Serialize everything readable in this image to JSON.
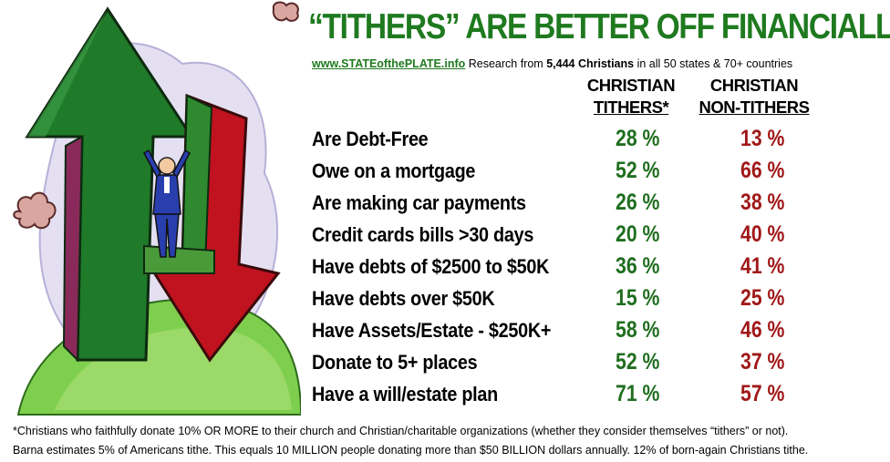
{
  "header": {
    "title": "“TITHERS” ARE BETTER OFF FINANCIALLY",
    "site": "www.STATEofthePLATE.info",
    "research_prefix": " Research from ",
    "research_count": "5,444 Christians",
    "research_suffix": " in all 50  states & 70+ countries"
  },
  "columns": {
    "tithers_line1": "CHRISTIAN",
    "tithers_line2": "TITHERS*",
    "non_tithers_line1": "CHRISTIAN",
    "non_tithers_line2": "NON-TITHERS"
  },
  "rows": [
    {
      "label": "Are Debt-Free",
      "tithers": "28 %",
      "non_tithers": "13 %"
    },
    {
      "label": "Owe on a mortgage",
      "tithers": "52 %",
      "non_tithers": "66 %"
    },
    {
      "label": "Are making car payments",
      "tithers": "26 %",
      "non_tithers": "38 %"
    },
    {
      "label": "Credit cards bills >30 days",
      "tithers": "20 %",
      "non_tithers": "40 %"
    },
    {
      "label": "Have debts of $2500 to $50K",
      "tithers": "36 %",
      "non_tithers": "41 %"
    },
    {
      "label": "Have debts over $50K",
      "tithers": "15 %",
      "non_tithers": "25 %"
    },
    {
      "label": "Have Assets/Estate  - $250K+",
      "tithers": "58 %",
      "non_tithers": "46 %"
    },
    {
      "label": "Donate to 5+ places",
      "tithers": "52 %",
      "non_tithers": "37 %"
    },
    {
      "label": "Have a will/estate plan",
      "tithers": "71 %",
      "non_tithers": "57 %"
    }
  ],
  "footnote": {
    "line1": "*Christians who faithfully donate 10%  OR MORE to their church and Christian/charitable organizations (whether they consider themselves “tithers” or not).",
    "line2": "Barna estimates 5% of Americans tithe.  This equals 10 MILLION people donating more than $50 BILLION dollars annually.  12% of born-again Christians tithe."
  },
  "colors": {
    "title_green": "#1f7a1f",
    "tither_green": "#1f6e1f",
    "non_tither_red": "#a01818"
  },
  "icons": [
    "up-arrow-icon",
    "down-arrow-icon",
    "businessman-icon",
    "cloud-icon"
  ]
}
